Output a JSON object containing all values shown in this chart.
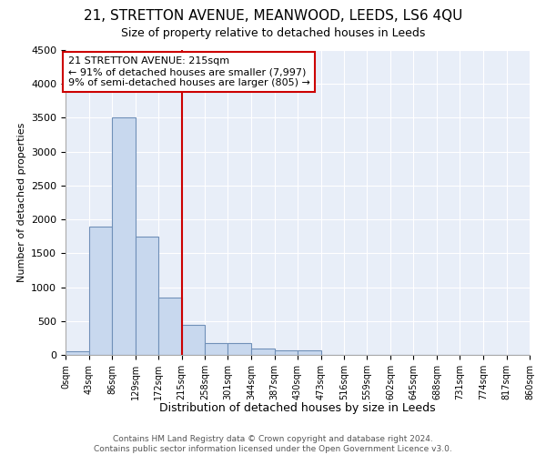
{
  "title1": "21, STRETTON AVENUE, MEANWOOD, LEEDS, LS6 4QU",
  "title2": "Size of property relative to detached houses in Leeds",
  "xlabel": "Distribution of detached houses by size in Leeds",
  "ylabel": "Number of detached properties",
  "bin_edges": [
    0,
    43,
    86,
    129,
    172,
    215,
    258,
    301,
    344,
    387,
    430,
    473,
    516,
    559,
    602,
    645,
    688,
    731,
    774,
    817,
    860
  ],
  "bar_heights": [
    50,
    1900,
    3500,
    1750,
    850,
    450,
    175,
    175,
    100,
    65,
    65,
    0,
    0,
    0,
    0,
    0,
    0,
    0,
    0,
    0
  ],
  "bar_color": "#c8d8ee",
  "bar_edge_color": "#7090b8",
  "property_line_x": 215,
  "property_line_color": "#cc0000",
  "annotation_text": "21 STRETTON AVENUE: 215sqm\n← 91% of detached houses are smaller (7,997)\n9% of semi-detached houses are larger (805) →",
  "annotation_box_color": "white",
  "annotation_box_edge_color": "#cc0000",
  "ylim": [
    0,
    4500
  ],
  "yticks": [
    0,
    500,
    1000,
    1500,
    2000,
    2500,
    3000,
    3500,
    4000,
    4500
  ],
  "footer_text": "Contains HM Land Registry data © Crown copyright and database right 2024.\nContains public sector information licensed under the Open Government Licence v3.0.",
  "bg_color": "#ffffff",
  "plot_bg_color": "#e8eef8",
  "grid_color": "#ffffff",
  "title1_fontsize": 11,
  "title2_fontsize": 9,
  "xlabel_fontsize": 9,
  "ylabel_fontsize": 8,
  "footer_fontsize": 6.5
}
